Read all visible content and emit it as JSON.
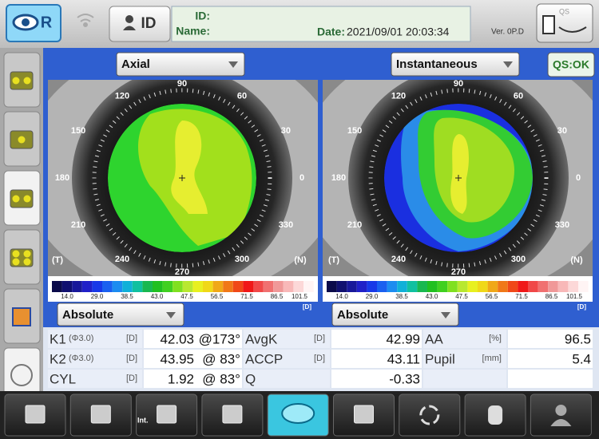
{
  "header": {
    "eye": "R",
    "id_button": "ID",
    "id_label": "ID:",
    "name_label": "Name:",
    "date_label": "Date:",
    "date": "2021/09/01 20:03:34",
    "version": "Ver.  0P.D",
    "qs_badge": "QS"
  },
  "maps": [
    {
      "map_type": "Axial",
      "scale_mode": "Absolute"
    },
    {
      "map_type": "Instantaneous",
      "scale_mode": "Absolute"
    }
  ],
  "angle_labels": [
    "90",
    "60",
    "30",
    "0",
    "330",
    "300",
    "270",
    "240",
    "210",
    "180",
    "150",
    "120"
  ],
  "side_labels": {
    "temporal": "(T)",
    "nasal": "(N)"
  },
  "qs_status": "QS:OK",
  "color_scale": {
    "ticks": [
      "14.0",
      "29.0",
      "38.5",
      "43.0",
      "47.5",
      "56.5",
      "71.5",
      "86.5",
      "101.5"
    ],
    "unit": "[D]"
  },
  "table": {
    "rows": [
      [
        {
          "label": "K1",
          "sub": "(Φ3.0)",
          "unit": "[D]"
        },
        {
          "value": "42.03",
          "axis": "@173°"
        },
        {
          "label": "AvgK",
          "unit": "[D]"
        },
        {
          "value": "42.99"
        },
        {
          "label": "AA",
          "unit": "[%]"
        },
        {
          "value": "96.5"
        }
      ],
      [
        {
          "label": "K2",
          "sub": "(Φ3.0)",
          "unit": "[D]"
        },
        {
          "value": "43.95",
          "axis": "@ 83°"
        },
        {
          "label": "ACCP",
          "unit": "[D]"
        },
        {
          "value": "43.11"
        },
        {
          "label": "Pupil",
          "unit": "[mm]"
        },
        {
          "value": "5.4"
        }
      ],
      [
        {
          "label": "CYL",
          "unit": "[D]"
        },
        {
          "value": "1.92",
          "axis": "@ 83°"
        },
        {
          "label": "Q"
        },
        {
          "value": "-0.33"
        }
      ]
    ]
  },
  "footer": {
    "int_label": "Int."
  }
}
